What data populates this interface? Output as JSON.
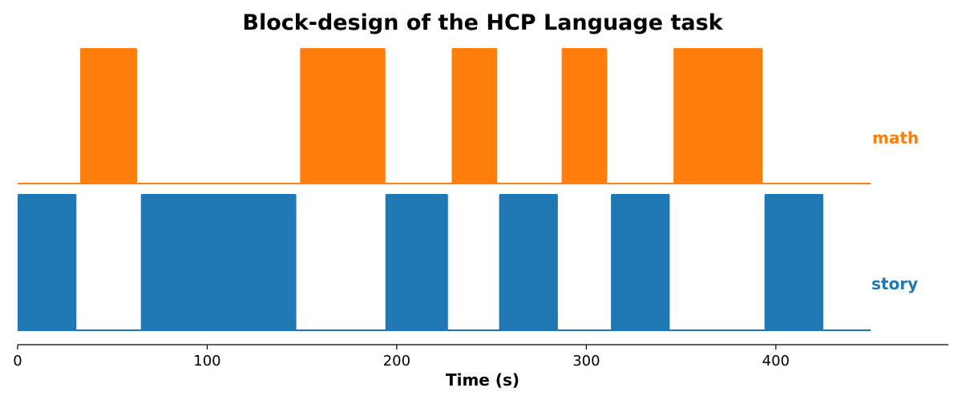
{
  "chart_data": {
    "type": "area",
    "title": "Block-design of the HCP Language task",
    "xlabel": "Time (s)",
    "ylabel": "",
    "xlim": [
      0,
      491
    ],
    "xticks": [
      0,
      100,
      200,
      300,
      400
    ],
    "series": [
      {
        "name": "math",
        "color": "#ff7f0e",
        "baseline_end": 450,
        "blocks": [
          [
            33,
            63
          ],
          [
            149,
            194
          ],
          [
            229,
            253
          ],
          [
            287,
            311
          ],
          [
            346,
            393
          ]
        ]
      },
      {
        "name": "story",
        "color": "#1f77b4",
        "baseline_end": 450,
        "blocks": [
          [
            0,
            31
          ],
          [
            65,
            147
          ],
          [
            194,
            227
          ],
          [
            254,
            285
          ],
          [
            313,
            344
          ],
          [
            394,
            425
          ]
        ]
      }
    ],
    "grid": false,
    "legend": "none"
  }
}
